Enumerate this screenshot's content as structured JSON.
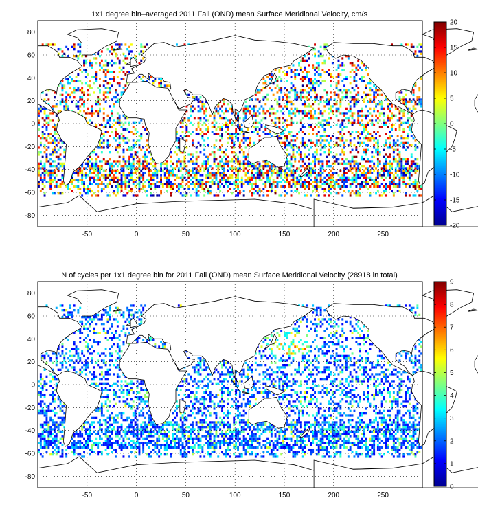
{
  "chart_data": [
    {
      "type": "heatmap",
      "title": "1x1 degree bin–averaged 2011 Fall (OND) mean Surface Meridional Velocity, cm/s",
      "xlabel": "",
      "ylabel": "",
      "xlim": [
        -100,
        290
      ],
      "ylim": [
        -90,
        90
      ],
      "x_ticks": [
        -50,
        0,
        50,
        100,
        150,
        200,
        250
      ],
      "y_ticks": [
        80,
        60,
        40,
        20,
        0,
        -20,
        -40,
        -60,
        -80
      ],
      "grid": true,
      "colorbar": {
        "min": -20,
        "max": 20,
        "ticks": [
          20,
          15,
          10,
          5,
          0,
          -5,
          -10,
          -15,
          -20
        ],
        "colormap": "jet",
        "placement": "right"
      }
    },
    {
      "type": "heatmap",
      "title": "N of cycles per 1x1 degree bin for 2011 Fall (OND) mean Surface Meridional Velocity (28918 in total)",
      "xlabel": "",
      "ylabel": "",
      "xlim": [
        -100,
        290
      ],
      "ylim": [
        -90,
        90
      ],
      "x_ticks": [
        -50,
        0,
        50,
        100,
        150,
        200,
        250
      ],
      "y_ticks": [
        80,
        60,
        40,
        20,
        0,
        -20,
        -40,
        -60,
        -80
      ],
      "grid": true,
      "colorbar": {
        "min": 0,
        "max": 9,
        "ticks": [
          9,
          8,
          7,
          6,
          5,
          4,
          3,
          2,
          1,
          0
        ],
        "colormap": "jet",
        "placement": "right"
      }
    }
  ]
}
